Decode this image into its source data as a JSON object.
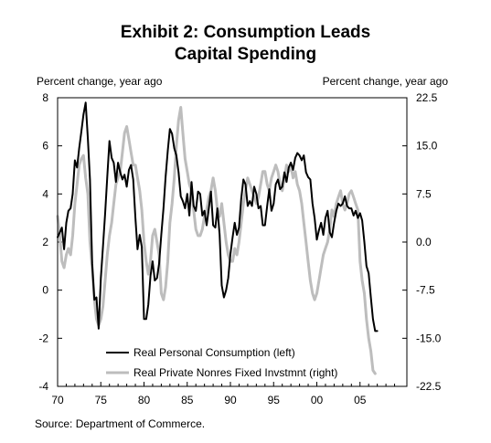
{
  "chart_data": {
    "type": "line",
    "title": "Exhibit 2: Consumption Leads",
    "title_line2": "Capital Spending",
    "left_axis_label": "Percent change, year ago",
    "right_axis_label": "Percent change, year ago",
    "source": "Source: Department of Commerce.",
    "legend_placement": "bottom-left",
    "grid": false,
    "xlim": [
      1970,
      2009.5
    ],
    "ylim_left": [
      -4,
      8
    ],
    "ylim_right": [
      -22.5,
      22.5
    ],
    "x_ticks": [
      1970,
      1975,
      1980,
      1985,
      1990,
      1995,
      2000,
      2005
    ],
    "x_tick_labels": [
      "70",
      "75",
      "80",
      "85",
      "90",
      "95",
      "00",
      "05"
    ],
    "left_ticks": [
      8,
      6,
      4,
      2,
      0,
      -2,
      -4
    ],
    "left_tick_labels": [
      "8",
      "6",
      "4",
      "2",
      "0",
      "-2",
      "-4"
    ],
    "right_ticks": [
      22.5,
      15,
      7.5,
      0,
      -7.5,
      -15,
      -22.5
    ],
    "right_tick_labels": [
      "22.5",
      "15.0",
      "7.5",
      "0.0",
      "-7.5",
      "-15.0",
      "-22.5"
    ],
    "series": [
      {
        "name": "Real Personal Consumption (left)",
        "axis": "left",
        "color": "#000000",
        "points": [
          [
            1970.0,
            2.2
          ],
          [
            1970.25,
            2.4
          ],
          [
            1970.5,
            2.6
          ],
          [
            1970.75,
            1.7
          ],
          [
            1971.0,
            2.8
          ],
          [
            1971.25,
            3.3
          ],
          [
            1971.5,
            3.4
          ],
          [
            1971.75,
            4.0
          ],
          [
            1972.0,
            5.4
          ],
          [
            1972.25,
            5.1
          ],
          [
            1972.5,
            5.9
          ],
          [
            1972.75,
            6.6
          ],
          [
            1973.0,
            7.3
          ],
          [
            1973.25,
            7.8
          ],
          [
            1973.5,
            6.3
          ],
          [
            1973.75,
            4.6
          ],
          [
            1974.0,
            1.1
          ],
          [
            1974.25,
            -0.4
          ],
          [
            1974.5,
            -0.3
          ],
          [
            1974.75,
            -1.6
          ],
          [
            1975.0,
            0.5
          ],
          [
            1975.25,
            1.8
          ],
          [
            1975.5,
            3.2
          ],
          [
            1975.75,
            4.7
          ],
          [
            1976.0,
            6.2
          ],
          [
            1976.25,
            5.5
          ],
          [
            1976.5,
            5.3
          ],
          [
            1976.75,
            4.5
          ],
          [
            1977.0,
            5.3
          ],
          [
            1977.25,
            4.9
          ],
          [
            1977.5,
            4.6
          ],
          [
            1977.75,
            4.8
          ],
          [
            1978.0,
            4.3
          ],
          [
            1978.25,
            5.0
          ],
          [
            1978.5,
            5.2
          ],
          [
            1978.75,
            4.6
          ],
          [
            1979.0,
            3.0
          ],
          [
            1979.25,
            1.7
          ],
          [
            1979.5,
            2.3
          ],
          [
            1979.75,
            1.8
          ],
          [
            1980.0,
            -1.2
          ],
          [
            1980.25,
            -1.2
          ],
          [
            1980.5,
            -0.6
          ],
          [
            1980.75,
            0.6
          ],
          [
            1981.0,
            1.2
          ],
          [
            1981.25,
            0.4
          ],
          [
            1981.5,
            0.5
          ],
          [
            1981.75,
            1.1
          ],
          [
            1982.0,
            2.3
          ],
          [
            1982.25,
            3.4
          ],
          [
            1982.5,
            4.7
          ],
          [
            1982.75,
            5.8
          ],
          [
            1983.0,
            6.7
          ],
          [
            1983.25,
            6.5
          ],
          [
            1983.5,
            5.9
          ],
          [
            1983.75,
            5.6
          ],
          [
            1984.0,
            4.9
          ],
          [
            1984.25,
            3.9
          ],
          [
            1984.5,
            3.7
          ],
          [
            1984.75,
            3.4
          ],
          [
            1985.0,
            4.0
          ],
          [
            1985.25,
            3.1
          ],
          [
            1985.5,
            4.5
          ],
          [
            1985.75,
            3.5
          ],
          [
            1986.0,
            3.3
          ],
          [
            1986.25,
            4.1
          ],
          [
            1986.5,
            4.0
          ],
          [
            1986.75,
            3.1
          ],
          [
            1987.0,
            3.3
          ],
          [
            1987.25,
            2.7
          ],
          [
            1987.5,
            3.4
          ],
          [
            1987.75,
            4.1
          ],
          [
            1988.0,
            2.7
          ],
          [
            1988.25,
            2.6
          ],
          [
            1988.5,
            3.4
          ],
          [
            1988.75,
            2.3
          ],
          [
            1989.0,
            0.2
          ],
          [
            1989.25,
            -0.3
          ],
          [
            1989.5,
            0.0
          ],
          [
            1989.75,
            0.5
          ],
          [
            1990.0,
            1.5
          ],
          [
            1990.25,
            2.2
          ],
          [
            1990.5,
            2.8
          ],
          [
            1990.75,
            2.3
          ],
          [
            1991.0,
            2.6
          ],
          [
            1991.25,
            3.8
          ],
          [
            1991.5,
            4.6
          ],
          [
            1991.75,
            4.4
          ],
          [
            1992.0,
            3.5
          ],
          [
            1992.25,
            3.7
          ],
          [
            1992.5,
            3.5
          ],
          [
            1992.75,
            4.3
          ],
          [
            1993.0,
            4.0
          ],
          [
            1993.25,
            3.4
          ],
          [
            1993.5,
            3.5
          ],
          [
            1993.75,
            2.7
          ],
          [
            1994.0,
            2.7
          ],
          [
            1994.25,
            3.5
          ],
          [
            1994.5,
            4.2
          ],
          [
            1994.75,
            3.3
          ],
          [
            1995.0,
            3.6
          ],
          [
            1995.25,
            4.4
          ],
          [
            1995.5,
            4.6
          ],
          [
            1995.75,
            4.2
          ],
          [
            1996.0,
            4.3
          ],
          [
            1996.25,
            4.9
          ],
          [
            1996.5,
            4.5
          ],
          [
            1996.75,
            5.1
          ],
          [
            1997.0,
            5.3
          ],
          [
            1997.25,
            5.0
          ],
          [
            1997.5,
            5.5
          ],
          [
            1997.75,
            5.7
          ],
          [
            1998.0,
            5.6
          ],
          [
            1998.25,
            5.4
          ],
          [
            1998.5,
            5.6
          ],
          [
            1998.75,
            4.9
          ],
          [
            1999.0,
            4.7
          ],
          [
            1999.25,
            4.6
          ],
          [
            1999.5,
            3.6
          ],
          [
            1999.75,
            3.0
          ],
          [
            2000.0,
            2.1
          ],
          [
            2000.25,
            2.5
          ],
          [
            2000.5,
            2.8
          ],
          [
            2000.75,
            2.3
          ],
          [
            2001.0,
            3.0
          ],
          [
            2001.25,
            3.3
          ],
          [
            2001.5,
            2.4
          ],
          [
            2001.75,
            2.2
          ],
          [
            2002.0,
            2.8
          ],
          [
            2002.25,
            3.3
          ],
          [
            2002.5,
            3.6
          ],
          [
            2002.75,
            3.5
          ],
          [
            2003.0,
            3.6
          ],
          [
            2003.25,
            3.9
          ],
          [
            2003.5,
            3.5
          ],
          [
            2003.75,
            3.4
          ],
          [
            2004.0,
            3.4
          ],
          [
            2004.25,
            3.1
          ],
          [
            2004.5,
            3.3
          ],
          [
            2004.75,
            3.0
          ],
          [
            2005.0,
            3.2
          ],
          [
            2005.25,
            2.9
          ],
          [
            2005.5,
            2.0
          ],
          [
            2005.75,
            1.0
          ],
          [
            2006.0,
            0.7
          ],
          [
            2006.25,
            -0.3
          ],
          [
            2006.5,
            -1.2
          ],
          [
            2006.75,
            -1.7
          ],
          [
            2007.0,
            -1.7
          ]
        ]
      },
      {
        "name": "Real Private Nonres Fixed Invstmnt (right)",
        "axis": "right",
        "color": "#bdbdbd",
        "points": [
          [
            1970.0,
            4
          ],
          [
            1970.25,
            1
          ],
          [
            1970.5,
            -3
          ],
          [
            1970.75,
            -4
          ],
          [
            1971.0,
            -2
          ],
          [
            1971.25,
            -1
          ],
          [
            1971.5,
            -2
          ],
          [
            1971.75,
            1
          ],
          [
            1972.0,
            6
          ],
          [
            1972.25,
            9
          ],
          [
            1972.5,
            12
          ],
          [
            1972.75,
            13
          ],
          [
            1973.0,
            13.5
          ],
          [
            1973.25,
            10
          ],
          [
            1973.5,
            7.5
          ],
          [
            1973.75,
            0
          ],
          [
            1974.0,
            -4
          ],
          [
            1974.25,
            -9
          ],
          [
            1974.5,
            -12
          ],
          [
            1974.75,
            -13
          ],
          [
            1975.0,
            -12
          ],
          [
            1975.25,
            -10
          ],
          [
            1975.5,
            -6
          ],
          [
            1975.75,
            -2
          ],
          [
            1976.0,
            1
          ],
          [
            1976.25,
            3
          ],
          [
            1976.5,
            6
          ],
          [
            1976.75,
            9
          ],
          [
            1977.0,
            10
          ],
          [
            1977.25,
            11
          ],
          [
            1977.5,
            14
          ],
          [
            1977.75,
            17
          ],
          [
            1978.0,
            18
          ],
          [
            1978.25,
            16
          ],
          [
            1978.5,
            14
          ],
          [
            1978.75,
            12
          ],
          [
            1979.0,
            12
          ],
          [
            1979.25,
            10
          ],
          [
            1979.5,
            8
          ],
          [
            1979.75,
            5
          ],
          [
            1980.0,
            0
          ],
          [
            1980.25,
            -3
          ],
          [
            1980.5,
            -5
          ],
          [
            1980.75,
            -3
          ],
          [
            1981.0,
            1
          ],
          [
            1981.25,
            2
          ],
          [
            1981.5,
            0
          ],
          [
            1981.75,
            -2
          ],
          [
            1982.0,
            -8
          ],
          [
            1982.25,
            -9
          ],
          [
            1982.5,
            -7
          ],
          [
            1982.75,
            -3
          ],
          [
            1983.0,
            3
          ],
          [
            1983.25,
            6
          ],
          [
            1983.5,
            10
          ],
          [
            1983.75,
            15
          ],
          [
            1984.0,
            19
          ],
          [
            1984.25,
            21
          ],
          [
            1984.5,
            17
          ],
          [
            1984.75,
            13
          ],
          [
            1985.0,
            11
          ],
          [
            1985.25,
            9
          ],
          [
            1985.5,
            8
          ],
          [
            1985.75,
            5
          ],
          [
            1986.0,
            2
          ],
          [
            1986.25,
            1
          ],
          [
            1986.5,
            1
          ],
          [
            1986.75,
            2
          ],
          [
            1987.0,
            4
          ],
          [
            1987.25,
            5
          ],
          [
            1987.5,
            7
          ],
          [
            1987.75,
            8
          ],
          [
            1988.0,
            10
          ],
          [
            1988.25,
            8
          ],
          [
            1988.5,
            5
          ],
          [
            1988.75,
            4
          ],
          [
            1989.0,
            6
          ],
          [
            1989.25,
            3
          ],
          [
            1989.5,
            0
          ],
          [
            1989.75,
            -2
          ],
          [
            1990.0,
            -3
          ],
          [
            1990.25,
            -3
          ],
          [
            1990.5,
            -1
          ],
          [
            1990.75,
            -2
          ],
          [
            1991.0,
            0
          ],
          [
            1991.25,
            3
          ],
          [
            1991.5,
            6
          ],
          [
            1991.75,
            8
          ],
          [
            1992.0,
            10
          ],
          [
            1992.25,
            9
          ],
          [
            1992.5,
            8
          ],
          [
            1992.75,
            7
          ],
          [
            1993.0,
            6
          ],
          [
            1993.25,
            7
          ],
          [
            1993.5,
            9
          ],
          [
            1993.75,
            11
          ],
          [
            1994.0,
            11
          ],
          [
            1994.25,
            9
          ],
          [
            1994.5,
            8
          ],
          [
            1994.75,
            10
          ],
          [
            1995.0,
            11
          ],
          [
            1995.25,
            12
          ],
          [
            1995.5,
            11
          ],
          [
            1995.75,
            9
          ],
          [
            1996.0,
            8
          ],
          [
            1996.25,
            10
          ],
          [
            1996.5,
            12
          ],
          [
            1996.75,
            11
          ],
          [
            1997.0,
            12
          ],
          [
            1997.25,
            10
          ],
          [
            1997.5,
            11
          ],
          [
            1997.75,
            9
          ],
          [
            1998.0,
            8
          ],
          [
            1998.25,
            6
          ],
          [
            1998.5,
            3
          ],
          [
            1998.75,
            0
          ],
          [
            1999.0,
            -3
          ],
          [
            1999.25,
            -6
          ],
          [
            1999.5,
            -8
          ],
          [
            1999.75,
            -9
          ],
          [
            2000.0,
            -8
          ],
          [
            2000.25,
            -6
          ],
          [
            2000.5,
            -4
          ],
          [
            2000.75,
            -2
          ],
          [
            2001.0,
            -1
          ],
          [
            2001.25,
            0
          ],
          [
            2001.5,
            2
          ],
          [
            2001.75,
            5
          ],
          [
            2002.0,
            4
          ],
          [
            2002.25,
            6
          ],
          [
            2002.5,
            7
          ],
          [
            2002.75,
            8
          ],
          [
            2003.0,
            6
          ],
          [
            2003.25,
            5
          ],
          [
            2003.5,
            6
          ],
          [
            2003.75,
            7.5
          ],
          [
            2004.0,
            8
          ],
          [
            2004.25,
            7
          ],
          [
            2004.5,
            6
          ],
          [
            2004.75,
            5
          ],
          [
            2005.0,
            -3
          ],
          [
            2005.25,
            -6
          ],
          [
            2005.5,
            -8
          ],
          [
            2005.75,
            -12
          ],
          [
            2006.0,
            -15
          ],
          [
            2006.25,
            -17
          ],
          [
            2006.5,
            -20
          ],
          [
            2006.75,
            -20.5
          ]
        ]
      }
    ]
  }
}
